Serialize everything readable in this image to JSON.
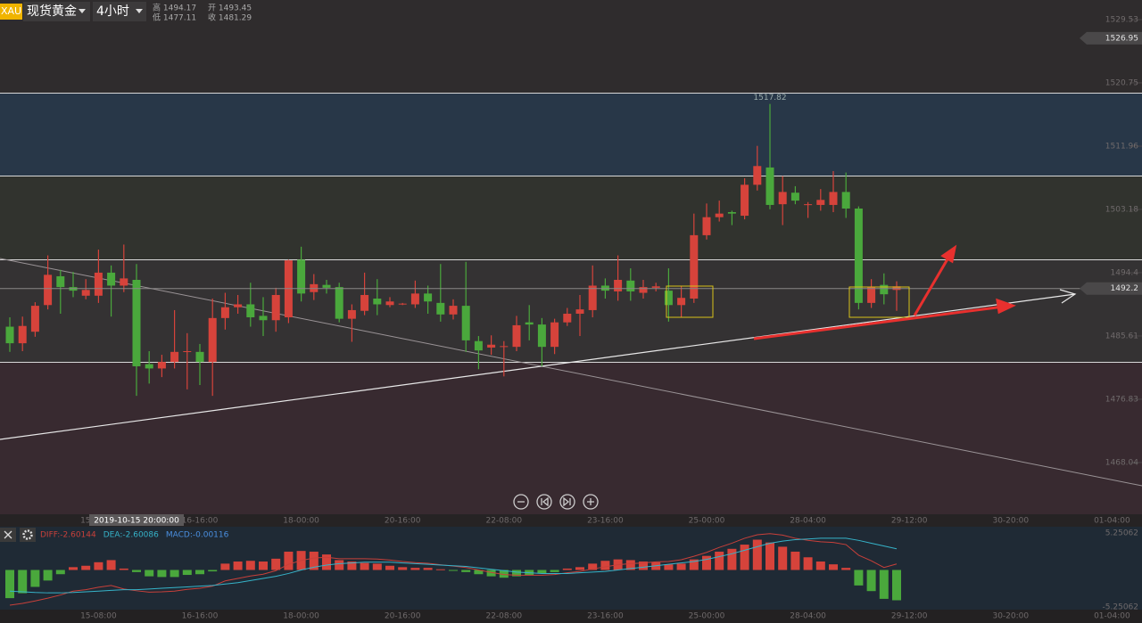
{
  "header": {
    "symbol": "XAU",
    "name": "现货黄金",
    "period": "4小时",
    "high": "高 1494.17",
    "low": "低 1477.11",
    "open": "开 1493.45",
    "close": "收 1481.29"
  },
  "chart_data": [
    {
      "type": "candlestick",
      "up_color": "#d6433b",
      "down_color": "#4aa83c",
      "ylim": [
        1460.86,
        1532.25
      ],
      "yticks": [
        1529.53,
        1520.75,
        1511.96,
        1503.18,
        1494.4,
        1485.61,
        1476.83,
        1468.04
      ],
      "price_tags": [
        1526.95,
        1492.2
      ],
      "peak_label": 1517.82,
      "crosshair_time": "2019-10-15 20:00:00",
      "xtick_labels": [
        "15-08:00",
        "16-16:00",
        "18-00:00",
        "20-16:00",
        "22-08:00",
        "23-16:00",
        "25-00:00",
        "28-04:00",
        "29-12:00",
        "30-20:00",
        "01-04:00"
      ],
      "open": [
        1486.9,
        1484.6,
        1486.2,
        1489.9,
        1493.9,
        1492.4,
        1491.2,
        1491.2,
        1494.4,
        1492.6,
        1493.4,
        1481.7,
        1481.1,
        1482.0,
        1483.4,
        1483.4,
        1482.0,
        1488.1,
        1489.6,
        1490.0,
        1488.4,
        1487.8,
        1488.2,
        1496.2,
        1491.7,
        1492.7,
        1492.4,
        1488.0,
        1489.1,
        1490.8,
        1489.9,
        1490.0,
        1490.0,
        1491.5,
        1490.2,
        1488.6,
        1489.8,
        1484.9,
        1484.0,
        1484.1,
        1484.1,
        1487.5,
        1487.2,
        1484.1,
        1487.5,
        1488.7,
        1489.2,
        1492.6,
        1491.8,
        1493.3,
        1491.6,
        1492.3,
        1491.9,
        1489.9,
        1490.8,
        1499.6,
        1502.1,
        1502.8,
        1502.3,
        1506.6,
        1509.0,
        1503.9,
        1505.5,
        1503.8,
        1503.8,
        1503.8,
        1505.6,
        1503.3,
        1490.2,
        1492.7,
        1492.0
      ],
      "high": [
        1488.2,
        1488.3,
        1490.3,
        1496.8,
        1494.8,
        1494.5,
        1493.5,
        1497.6,
        1495.4,
        1498.3,
        1495.6,
        1483.5,
        1483.0,
        1489.2,
        1486.0,
        1484.5,
        1490.8,
        1491.6,
        1491.3,
        1493.0,
        1491.0,
        1492.3,
        1496.2,
        1498.0,
        1494.2,
        1493.4,
        1493.0,
        1490.0,
        1494.4,
        1493.5,
        1491.0,
        1490.2,
        1493.3,
        1492.6,
        1495.6,
        1490.7,
        1495.9,
        1485.6,
        1485.7,
        1484.9,
        1488.4,
        1489.9,
        1488.1,
        1488.0,
        1489.5,
        1491.3,
        1495.4,
        1493.6,
        1496.8,
        1495.0,
        1493.4,
        1493.0,
        1495.0,
        1492.5,
        1502.6,
        1504.0,
        1504.4,
        1503.0,
        1507.5,
        1512.0,
        1517.82,
        1507.8,
        1506.4,
        1504.2,
        1506.0,
        1508.5,
        1508.3,
        1503.6,
        1493.5,
        1494.3,
        1493.2
      ],
      "low": [
        1483.4,
        1483.5,
        1485.5,
        1489.3,
        1488.7,
        1491.0,
        1490.7,
        1490.2,
        1488.3,
        1491.7,
        1477.3,
        1479.0,
        1479.9,
        1481.1,
        1478.2,
        1478.8,
        1477.3,
        1486.5,
        1488.7,
        1486.9,
        1485.6,
        1486.2,
        1487.4,
        1490.4,
        1490.6,
        1491.5,
        1487.5,
        1484.8,
        1488.5,
        1488.5,
        1489.6,
        1489.9,
        1489.5,
        1488.7,
        1487.6,
        1487.9,
        1483.4,
        1481.0,
        1483.0,
        1480.0,
        1483.5,
        1485.0,
        1481.4,
        1483.1,
        1487.0,
        1485.6,
        1488.2,
        1490.8,
        1490.5,
        1490.5,
        1490.8,
        1491.8,
        1487.6,
        1488.2,
        1490.2,
        1499.0,
        1501.5,
        1501.0,
        1501.8,
        1505.8,
        1503.2,
        1501.0,
        1503.9,
        1502.0,
        1503.0,
        1502.8,
        1502.0,
        1489.3,
        1489.5,
        1490.0,
        1489.1
      ],
      "close": [
        1484.6,
        1487.0,
        1489.8,
        1494.1,
        1492.4,
        1491.9,
        1492.0,
        1494.4,
        1492.6,
        1493.6,
        1481.4,
        1481.1,
        1482.0,
        1483.4,
        1483.5,
        1482.0,
        1488.1,
        1489.6,
        1490.0,
        1488.2,
        1487.8,
        1491.3,
        1496.1,
        1491.5,
        1492.8,
        1492.3,
        1488.0,
        1489.2,
        1491.3,
        1490.0,
        1490.4,
        1490.1,
        1491.5,
        1490.4,
        1488.6,
        1489.8,
        1485.0,
        1483.6,
        1484.4,
        1484.2,
        1487.1,
        1487.2,
        1484.1,
        1487.5,
        1488.7,
        1489.3,
        1492.6,
        1491.9,
        1493.4,
        1491.8,
        1492.4,
        1492.5,
        1489.9,
        1490.9,
        1499.6,
        1502.1,
        1502.6,
        1502.6,
        1506.6,
        1509.2,
        1503.8,
        1505.6,
        1504.4,
        1503.9,
        1504.5,
        1505.6,
        1503.3,
        1490.2,
        1492.4,
        1491.4,
        1492.5
      ]
    },
    {
      "type": "macd",
      "ylim": [
        -5.25062,
        5.25062
      ],
      "yticks": [
        5.25062,
        -5.25062
      ],
      "series": [
        {
          "legend": "DIFF:-2.60144",
          "color": "#c8403a",
          "values": [
            -5.0,
            -4.75,
            -4.4,
            -4.0,
            -3.55,
            -3.0,
            -2.8,
            -2.45,
            -2.2,
            -2.7,
            -2.95,
            -3.15,
            -3.1,
            -3.0,
            -2.75,
            -2.6,
            -2.3,
            -1.55,
            -1.2,
            -0.85,
            -0.6,
            -0.1,
            0.8,
            1.35,
            1.7,
            1.8,
            1.6,
            1.6,
            1.6,
            1.55,
            1.4,
            1.2,
            1.05,
            0.95,
            0.75,
            0.55,
            0.35,
            0.0,
            -0.35,
            -0.65,
            -0.75,
            -0.75,
            -0.75,
            -0.65,
            -0.4,
            -0.2,
            0.15,
            0.45,
            0.75,
            0.9,
            1.0,
            1.15,
            1.2,
            1.45,
            1.95,
            2.5,
            3.2,
            3.8,
            4.5,
            5.0,
            5.15,
            4.95,
            4.5,
            4.2,
            4.0,
            3.9,
            3.6,
            2.1,
            1.3,
            0.35,
            0.85
          ]
        },
        {
          "legend": "DEA:-2.60086",
          "color": "#36b3c9",
          "values": [
            -3.0,
            -3.1,
            -3.2,
            -3.25,
            -3.25,
            -3.2,
            -3.1,
            -3.0,
            -2.9,
            -2.8,
            -2.8,
            -2.7,
            -2.6,
            -2.5,
            -2.4,
            -2.3,
            -2.2,
            -2.0,
            -1.8,
            -1.5,
            -1.2,
            -0.9,
            -0.5,
            0.0,
            0.4,
            0.7,
            0.9,
            1.0,
            1.1,
            1.1,
            1.1,
            1.0,
            0.9,
            0.8,
            0.7,
            0.6,
            0.5,
            0.3,
            0.1,
            -0.1,
            -0.3,
            -0.4,
            -0.5,
            -0.5,
            -0.5,
            -0.4,
            -0.3,
            -0.2,
            0.0,
            0.2,
            0.4,
            0.6,
            0.8,
            1.0,
            1.2,
            1.5,
            1.9,
            2.3,
            2.8,
            3.3,
            3.8,
            4.1,
            4.3,
            4.4,
            4.5,
            4.5,
            4.5,
            4.2,
            3.8,
            3.4,
            3.0
          ]
        }
      ],
      "histogram": {
        "legend": "MACD:-0.00116",
        "color": "#4a8fe0",
        "up_color": "#d6433b",
        "down_color": "#4aa83c",
        "values": [
          -4.0,
          -3.3,
          -2.4,
          -1.5,
          -0.6,
          0.4,
          0.6,
          1.1,
          1.4,
          0.2,
          -0.3,
          -0.9,
          -1.0,
          -1.0,
          -0.7,
          -0.6,
          -0.2,
          0.9,
          1.2,
          1.3,
          1.2,
          1.6,
          2.6,
          2.7,
          2.6,
          2.2,
          1.4,
          1.2,
          1.0,
          0.9,
          0.6,
          0.4,
          0.3,
          0.3,
          0.1,
          -0.1,
          -0.3,
          -0.6,
          -0.9,
          -1.1,
          -0.9,
          -0.7,
          -0.5,
          -0.3,
          0.2,
          0.4,
          0.9,
          1.3,
          1.5,
          1.4,
          1.2,
          1.1,
          0.8,
          0.9,
          1.5,
          2.0,
          2.6,
          3.0,
          3.6,
          4.3,
          3.9,
          3.3,
          2.6,
          1.8,
          1.2,
          0.8,
          0.3,
          -2.2,
          -3.0,
          -4.1,
          -4.3
        ]
      }
    }
  ]
}
